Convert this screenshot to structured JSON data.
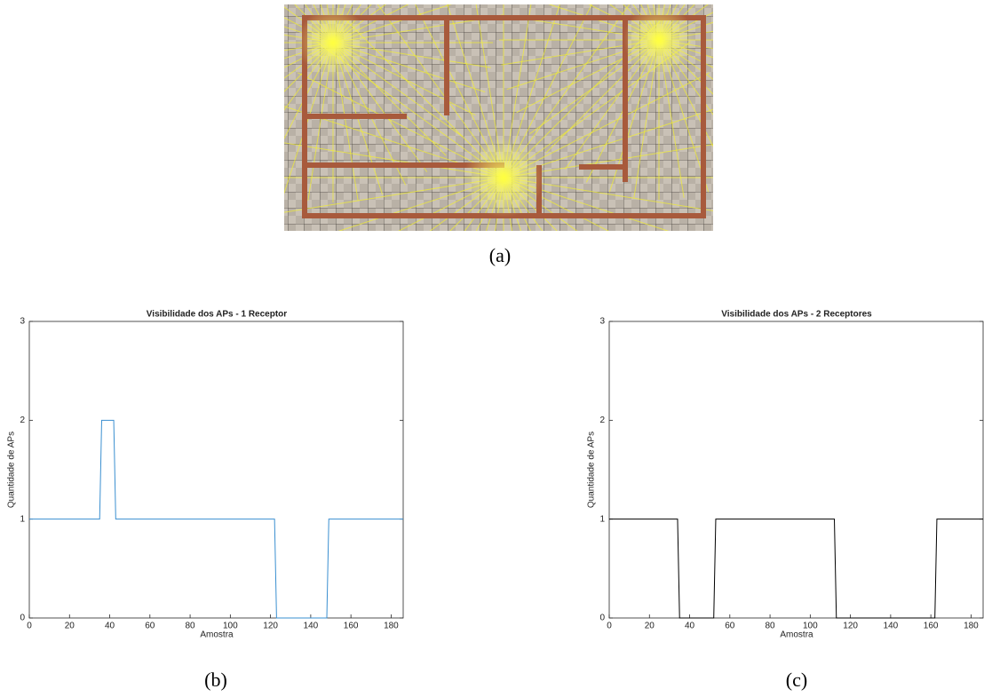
{
  "captions": [
    "(a)",
    "(b)",
    "(c)"
  ],
  "chart_data": [
    {
      "type": "line",
      "title": "Visibilidade dos APs - 1 Receptor",
      "x_label": "Amostra",
      "y_label": "Quantidade de APs",
      "x": [
        0,
        35,
        36,
        42,
        43,
        122,
        123,
        148,
        149,
        186
      ],
      "values": [
        1,
        1,
        2,
        2,
        1,
        1,
        0,
        0,
        1,
        1
      ],
      "color": "#3a8fd0",
      "xlim": [
        0,
        186
      ],
      "ylim": [
        0,
        3
      ],
      "xticks": [
        0,
        20,
        40,
        60,
        80,
        100,
        120,
        140,
        160,
        180
      ],
      "yticks": [
        0,
        1,
        2,
        3
      ]
    },
    {
      "type": "line",
      "title": "Visibilidade dos APs - 2 Receptores",
      "x_label": "Amostra",
      "y_label": "Quantidade de APs",
      "x": [
        0,
        34,
        35,
        52,
        53,
        112,
        113,
        162,
        163,
        186
      ],
      "values": [
        1,
        1,
        0,
        0,
        1,
        1,
        0,
        0,
        1,
        1
      ],
      "color": "#000000",
      "xlim": [
        0,
        186
      ],
      "ylim": [
        0,
        3
      ],
      "xticks": [
        0,
        20,
        40,
        60,
        80,
        100,
        120,
        140,
        160,
        180
      ],
      "yticks": [
        0,
        1,
        2,
        3
      ]
    }
  ]
}
